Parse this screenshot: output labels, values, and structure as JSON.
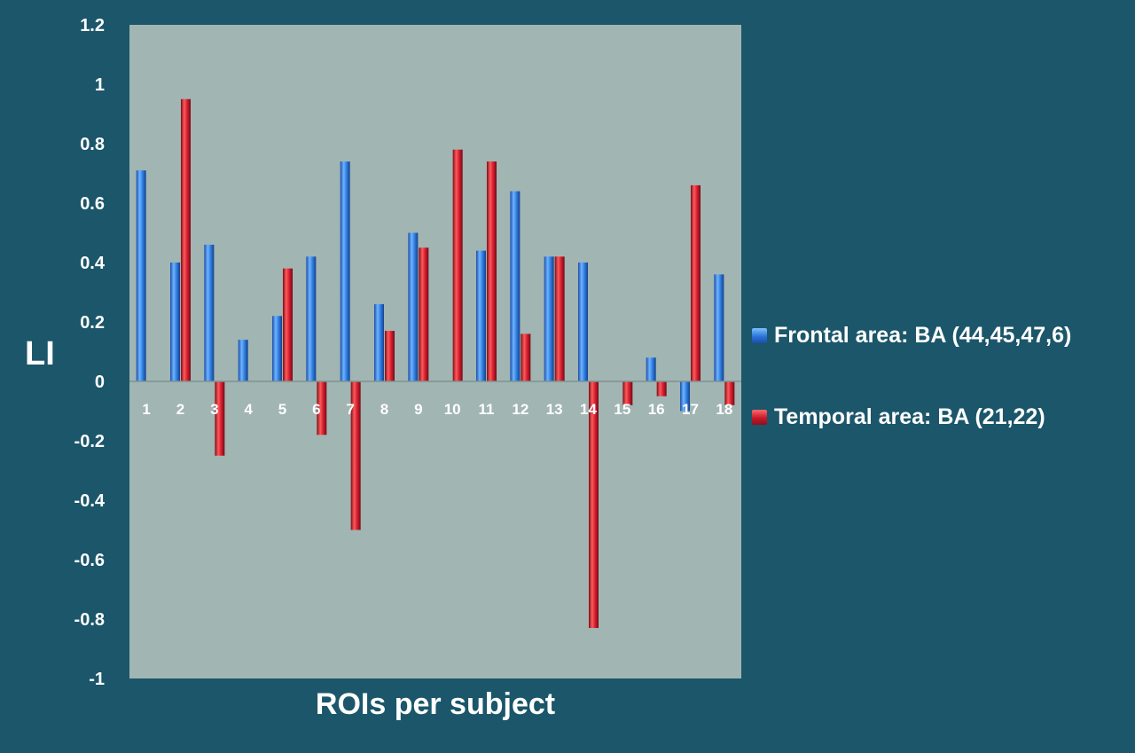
{
  "chart_data": {
    "type": "bar",
    "title": "",
    "xlabel": "ROIs per subject",
    "ylabel": "LI",
    "ylim": [
      -1,
      1.2
    ],
    "yticks": [
      "1.2",
      "1",
      "0.8",
      "0.6",
      "0.4",
      "0.2",
      "0",
      "-0.2",
      "-0.4",
      "-0.6",
      "-0.8",
      "-1"
    ],
    "categories": [
      "1",
      "2",
      "3",
      "4",
      "5",
      "6",
      "7",
      "8",
      "9",
      "10",
      "11",
      "12",
      "13",
      "14",
      "15",
      "16",
      "17",
      "18"
    ],
    "series": [
      {
        "name": "Frontal area: BA (44,45,47,6)",
        "color": "#2f7fe0",
        "values": [
          0.71,
          0.4,
          0.46,
          0.14,
          0.22,
          0.42,
          0.74,
          0.26,
          0.5,
          0,
          0.44,
          0.64,
          0.42,
          0.4,
          0,
          0.08,
          -0.1,
          0.36
        ]
      },
      {
        "name": "Temporal area: BA (21,22)",
        "color": "#d21f30",
        "values": [
          0,
          0.95,
          -0.25,
          0,
          0.38,
          -0.18,
          -0.5,
          0.17,
          0.45,
          0.78,
          0.74,
          0.16,
          0.42,
          -0.83,
          -0.08,
          -0.05,
          0.66,
          -0.08
        ]
      }
    ],
    "legend_position": "right",
    "plot_background": "#a1b5b3",
    "grid": false
  }
}
